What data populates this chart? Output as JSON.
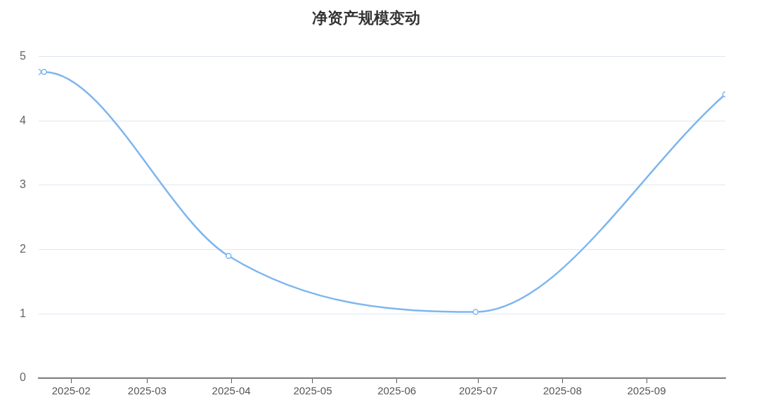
{
  "chart_data": {
    "type": "line",
    "title": "净资产规模变动",
    "x": [
      "2025-01-20",
      "2025-01-22",
      "2025-03-31",
      "2025-06-30",
      "2025-09-30"
    ],
    "series": [
      {
        "color": "#7db6ef",
        "values": [
          4.76,
          4.76,
          1.9,
          1.03,
          4.41
        ]
      }
    ],
    "xlim": [
      "2025-01-20",
      "2025-09-30"
    ],
    "xticks": [
      "2025-02",
      "2025-03",
      "2025-04",
      "2025-05",
      "2025-06",
      "2025-07",
      "2025-08",
      "2025-09"
    ],
    "ylim": [
      0,
      5
    ],
    "yticks": [
      0,
      1,
      2,
      3,
      4,
      5
    ],
    "grid": "y",
    "legend": false,
    "marker": "circle",
    "line_style": "solid"
  }
}
